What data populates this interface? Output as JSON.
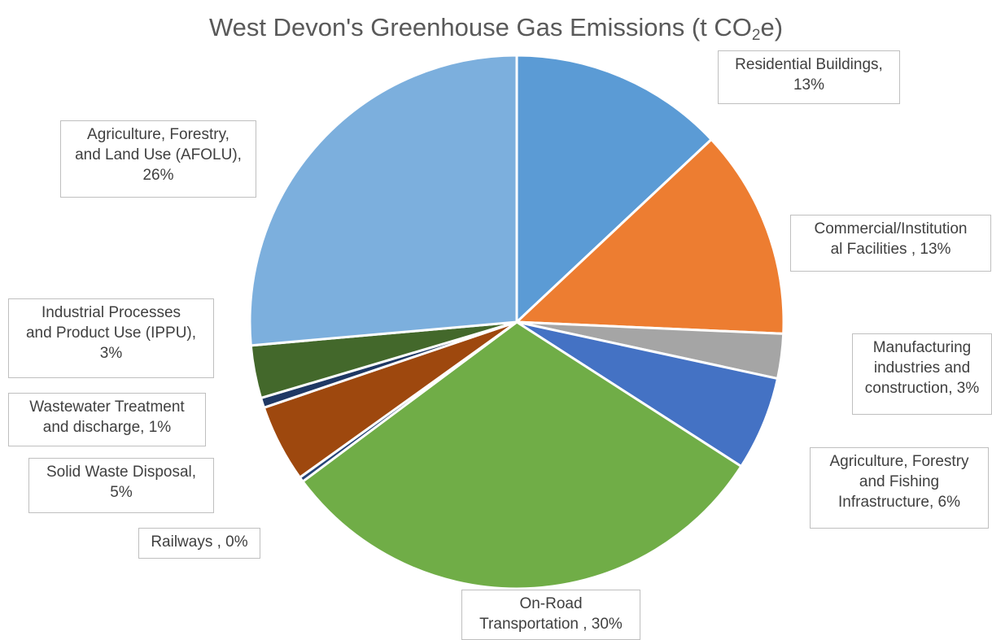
{
  "chart_data": {
    "type": "pie",
    "title": {
      "main": "West Devon's Greenhouse Gas Emissions (t CO",
      "subscript": "2",
      "suffix": "e)"
    },
    "slices": [
      {
        "label": "Residential Buildings",
        "value": 13,
        "label_lines": [
          "Residential Buildings,",
          "13%"
        ],
        "color": "#5b9bd5"
      },
      {
        "label": "Commercial/Institutional Facilities",
        "value": 13,
        "label_lines": [
          "Commercial/Institution",
          "al Facilities , 13%"
        ],
        "color": "#ed7d31"
      },
      {
        "label": "Manufacturing industries and construction",
        "value": 3,
        "label_lines": [
          "Manufacturing",
          "industries and",
          "construction, 3%"
        ],
        "color": "#a5a5a5"
      },
      {
        "label": "Agriculture, Forestry and Fishing Infrastructure",
        "value": 6,
        "label_lines": [
          "Agriculture, Forestry",
          "and Fishing",
          "Infrastructure, 6%"
        ],
        "color": "#4472c4"
      },
      {
        "label": "On-Road Transportation",
        "value": 30,
        "label_lines": [
          "On-Road",
          "Transportation , 30%"
        ],
        "color": "#70ad47"
      },
      {
        "label": "Railways",
        "value": 0,
        "label_lines": [
          "Railways , 0%"
        ],
        "color": "#264478"
      },
      {
        "label": "Solid Waste Disposal",
        "value": 5,
        "label_lines": [
          "Solid Waste Disposal,",
          "5%"
        ],
        "color": "#9e480e"
      },
      {
        "label": "Wastewater Treatment and discharge",
        "value": 1,
        "label_lines": [
          "Wastewater Treatment",
          "and discharge, 1%"
        ],
        "color": "#1f3864"
      },
      {
        "label": "Industrial Processes and Product Use (IPPU)",
        "value": 3,
        "label_lines": [
          "Industrial Processes",
          "and Product Use (IPPU),",
          "3%"
        ],
        "color": "#43682b"
      },
      {
        "label": "Agriculture, Forestry, and Land Use (AFOLU)",
        "value": 26,
        "label_lines": [
          "Agriculture, Forestry,",
          "and Land Use (AFOLU),",
          "26%"
        ],
        "color": "#7cafdd"
      }
    ]
  }
}
